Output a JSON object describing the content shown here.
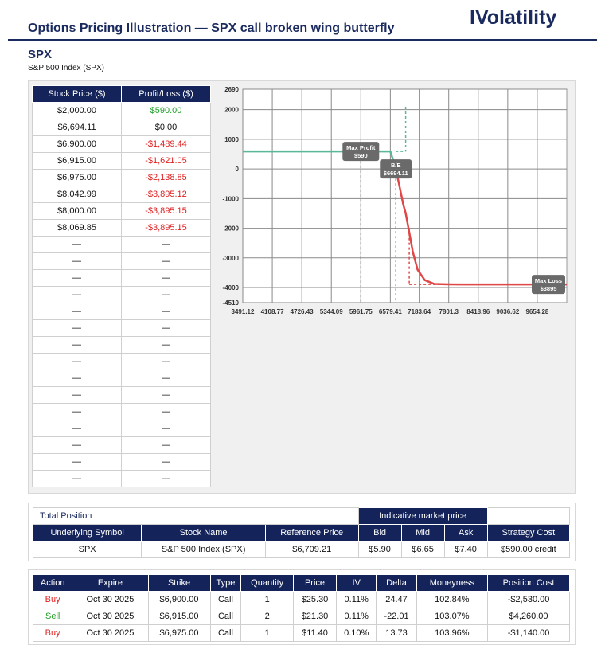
{
  "header": {
    "title": "Options Pricing Illustration — SPX call broken wing butterfly",
    "brand": "IVolatility"
  },
  "symbol": {
    "ticker": "SPX",
    "name": "S&P 500 Index (SPX)"
  },
  "pl_table": {
    "headers": [
      "Stock Price ($)",
      "Profit/Loss ($)"
    ],
    "rows": [
      {
        "price": "$2,000.00",
        "pl": "$590.00",
        "sign": "pos"
      },
      {
        "price": "$6,694.11",
        "pl": "$0.00",
        "sign": "zero"
      },
      {
        "price": "$6,900.00",
        "pl": "-$1,489.44",
        "sign": "neg"
      },
      {
        "price": "$6,915.00",
        "pl": "-$1,621.05",
        "sign": "neg"
      },
      {
        "price": "$6,975.00",
        "pl": "-$2,138.85",
        "sign": "neg"
      },
      {
        "price": "$8,042.99",
        "pl": "-$3,895.12",
        "sign": "neg"
      },
      {
        "price": "$8,000.00",
        "pl": "-$3,895.15",
        "sign": "neg"
      },
      {
        "price": "$8,069.85",
        "pl": "-$3,895.15",
        "sign": "neg"
      }
    ],
    "empty_rows": 15,
    "placeholder": "—"
  },
  "chart_data": {
    "type": "line",
    "x_ticks": [
      "3491.12",
      "4108.77",
      "4726.43",
      "5344.09",
      "5961.75",
      "6579.41",
      "7183.64",
      "7801.3",
      "8418.96",
      "9036.62",
      "9654.28"
    ],
    "y_ticks": [
      "2690",
      "2000",
      "1000",
      "0",
      "-1000",
      "-2000",
      "-3000",
      "-4000",
      "-4510"
    ],
    "ylim": [
      -4510,
      2690
    ],
    "xlim": [
      3491.12,
      10272
    ],
    "series": [
      {
        "color": "#e04848",
        "x": [
          3491.12,
          6580,
          6694.11,
          6760,
          6850,
          6900,
          6915,
          6975,
          7050,
          7150,
          7300,
          7500,
          7800,
          8042.99,
          8400,
          9000,
          10272
        ],
        "y": [
          590,
          590,
          0,
          -500,
          -1200,
          -1489.44,
          -1621.05,
          -2138.85,
          -2800,
          -3400,
          -3750,
          -3880,
          -3893,
          -3895.12,
          -3895.15,
          -3895.15,
          -3895.15
        ]
      }
    ],
    "annotations": [
      {
        "title": "Max Profit",
        "value": "$590",
        "x": 5961.75,
        "y": 590
      },
      {
        "title": "B/E",
        "value": "$6694.11",
        "x": 6694.11,
        "y": 0
      },
      {
        "title": "Max Loss",
        "value": "$3895",
        "x": 10272,
        "y": -3895
      }
    ],
    "colors": {
      "profit": "#5ab89a",
      "loss": "#e04848",
      "tag": "#6a6a6a"
    }
  },
  "total_position": {
    "title": "Total Position",
    "indicative_label": "Indicative market price",
    "headers": [
      "Underlying Symbol",
      "Stock Name",
      "Reference Price",
      "Bid",
      "Mid",
      "Ask",
      "Strategy Cost"
    ],
    "values": [
      "SPX",
      "S&P 500 Index (SPX)",
      "$6,709.21",
      "$5.90",
      "$6.65",
      "$7.40",
      "$590.00 credit"
    ]
  },
  "legs": {
    "headers": [
      "Action",
      "Expire",
      "Strike",
      "Type",
      "Quantity",
      "Price",
      "IV",
      "Delta",
      "Moneyness",
      "Position Cost"
    ],
    "rows": [
      {
        "action": "Buy",
        "expire": "Oct 30 2025",
        "strike": "$6,900.00",
        "type": "Call",
        "quantity": "1",
        "price": "$25.30",
        "iv": "0.11%",
        "delta": "24.47",
        "moneyness": "102.84%",
        "cost": "-$2,530.00"
      },
      {
        "action": "Sell",
        "expire": "Oct 30 2025",
        "strike": "$6,915.00",
        "type": "Call",
        "quantity": "2",
        "price": "$21.30",
        "iv": "0.11%",
        "delta": "-22.01",
        "moneyness": "103.07%",
        "cost": "$4,260.00"
      },
      {
        "action": "Buy",
        "expire": "Oct 30 2025",
        "strike": "$6,975.00",
        "type": "Call",
        "quantity": "1",
        "price": "$11.40",
        "iv": "0.10%",
        "delta": "13.73",
        "moneyness": "103.96%",
        "cost": "-$1,140.00"
      }
    ]
  }
}
